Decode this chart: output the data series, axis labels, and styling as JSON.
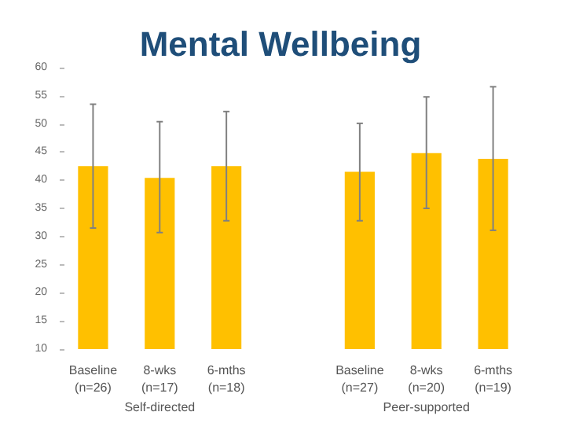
{
  "chart_data": {
    "type": "bar",
    "title": "Mental Wellbeing",
    "categories": [
      "Baseline\n(n=26)",
      "8-wks\n(n=17)",
      "6-mths\n(n=18)",
      null,
      "Baseline\n(n=27)",
      "8-wks\n(n=20)",
      "6-mths\n(n=19)"
    ],
    "values": [
      42.5,
      40.4,
      42.5,
      null,
      41.5,
      44.8,
      43.8
    ],
    "errors": [
      [
        31.5,
        53.5
      ],
      [
        30.7,
        50.4
      ],
      [
        32.8,
        52.2
      ],
      null,
      [
        32.8,
        50.1
      ],
      [
        35.0,
        54.8
      ],
      [
        31.1,
        56.6
      ]
    ],
    "color": "#ffc000",
    "annotations": [
      "Self-directed",
      "Peer-supported"
    ],
    "ylim": [
      10,
      60
    ],
    "yticks": [
      10,
      15,
      20,
      25,
      30,
      35,
      40,
      45,
      50,
      55,
      60
    ],
    "grid": false
  }
}
